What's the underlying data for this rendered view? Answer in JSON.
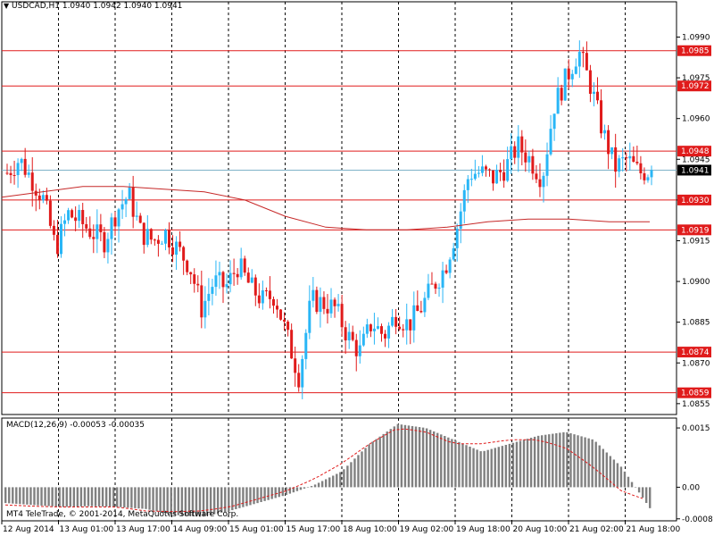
{
  "header": {
    "symbol_info": "USDCAD,H1  1.0940 1.0942 1.0940 1.0941",
    "dropdown_icon": "triangle-down-icon"
  },
  "macd_panel": {
    "title": "MACD(12,26,9) -0.00053 -0.00035",
    "copyright": "MT4 TeleTrade, © 2001-2014, MetaQuotes Software Corp."
  },
  "colors": {
    "background": "#ffffff",
    "frame": "#000000",
    "bull_candle": "#29b6f6",
    "bear_candle": "#e01b1b",
    "level_line": "#e01b1b",
    "moving_average": "#c62828",
    "current_price_line": "#7fb2c8",
    "macd_bars": "#808080",
    "macd_signal": "#e01b1b"
  },
  "chart_data": [
    {
      "type": "candlestick",
      "symbol": "USDCAD",
      "timeframe": "H1",
      "x_tick_labels": [
        "12 Aug 2014",
        "13 Aug 01:00",
        "13 Aug 17:00",
        "14 Aug 09:00",
        "15 Aug 01:00",
        "15 Aug 17:00",
        "18 Aug 10:00",
        "19 Aug 02:00",
        "19 Aug 18:00",
        "20 Aug 10:00",
        "21 Aug 02:00",
        "21 Aug 18:00"
      ],
      "y_tick_labels": [
        "1.0990",
        "1.0975",
        "1.0960",
        "1.0945",
        "1.0930",
        "1.0915",
        "1.0900",
        "1.0885",
        "1.0870",
        "1.0855"
      ],
      "ylim": [
        1.0851,
        1.1003
      ],
      "horizontal_levels": [
        1.0985,
        1.0972,
        1.0948,
        1.093,
        1.0919,
        1.0874,
        1.0859
      ],
      "level_labels": [
        "1.0985",
        "1.0972",
        "1.0948",
        "1.0930",
        "1.0919",
        "1.0874",
        "1.0859"
      ],
      "current_price": 1.0941,
      "current_price_label": "1.0941",
      "vertical_grid_dashed": true,
      "series": [
        {
          "name": "price",
          "trend_points": [
            1.094,
            1.0945,
            1.0938,
            1.093,
            1.0912,
            1.0925,
            1.0922,
            1.0918,
            1.0915,
            1.0926,
            1.0932,
            1.0918,
            1.0915,
            1.0918,
            1.0912,
            1.0906,
            1.089,
            1.09,
            1.0898,
            1.0906,
            1.0898,
            1.0893,
            1.0895,
            1.088,
            1.0865,
            1.0893,
            1.0892,
            1.089,
            1.088,
            1.0874,
            1.0885,
            1.088,
            1.0888,
            1.0884,
            1.089,
            1.0898,
            1.0905,
            1.092,
            1.094,
            1.094,
            1.0938,
            1.0942,
            1.095,
            1.0945,
            1.0938,
            1.0965,
            1.0975,
            1.0985,
            1.0972,
            1.0955,
            1.0942,
            1.0945,
            1.094,
            1.0941
          ]
        },
        {
          "name": "moving_average",
          "points": [
            1.0931,
            1.0933,
            1.0935,
            1.0935,
            1.0934,
            1.0933,
            1.093,
            1.0924,
            1.092,
            1.0919,
            1.0919,
            1.092,
            1.0922,
            1.0923,
            1.0923,
            1.0922,
            1.0922
          ]
        }
      ]
    },
    {
      "type": "macd",
      "y_tick_labels": [
        "0.0015",
        "0.00",
        "-0.0008"
      ],
      "ylim": [
        -0.00085,
        0.00175
      ],
      "series": [
        {
          "name": "histogram_outline",
          "points": [
            -0.0004,
            -0.00045,
            -0.0005,
            -0.00048,
            -0.0005,
            -0.00055,
            -0.0007,
            -0.00075,
            -0.0006,
            -0.0004,
            -0.0002,
            5e-05,
            0.0004,
            0.0011,
            0.0016,
            0.0015,
            0.0012,
            0.0009,
            0.0011,
            0.0013,
            0.0014,
            0.0012,
            0.0005,
            -0.00053
          ]
        },
        {
          "name": "signal",
          "points": [
            -0.00045,
            -0.00048,
            -0.0005,
            -0.0005,
            -0.0005,
            -0.0006,
            -0.00062,
            -0.0006,
            -0.0005,
            -0.0003,
            -0.0001,
            0.0002,
            0.0006,
            0.0011,
            0.0015,
            0.0014,
            0.0011,
            0.0011,
            0.0012,
            0.0012,
            0.001,
            0.0005,
            -0.0001,
            -0.00035
          ]
        }
      ]
    }
  ]
}
